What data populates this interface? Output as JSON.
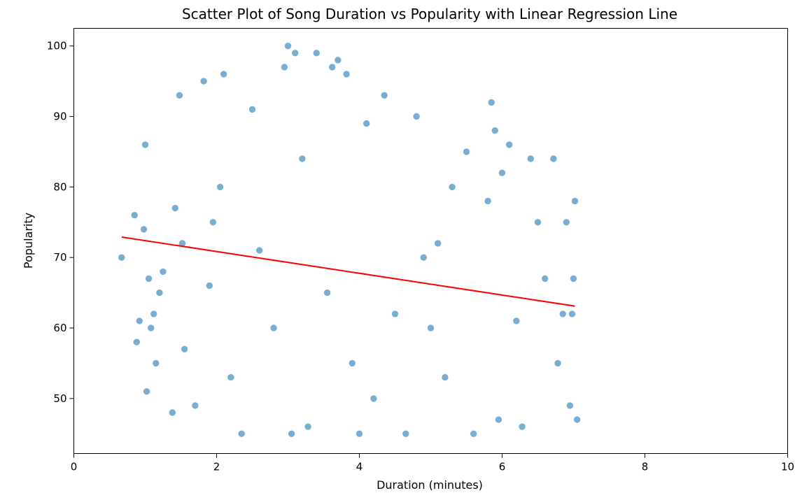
{
  "chart_data": {
    "type": "scatter",
    "title": "Scatter Plot of Song Duration vs Popularity with Linear Regression Line",
    "xlabel": "Duration (minutes)",
    "ylabel": "Popularity",
    "xlim": [
      0,
      10
    ],
    "ylim": [
      42.2,
      102.5
    ],
    "xticks": [
      0,
      2,
      4,
      6,
      8,
      10
    ],
    "yticks": [
      50,
      60,
      70,
      80,
      90,
      100
    ],
    "grid": false,
    "legend": "none",
    "colors": {
      "points": "#1f77b4",
      "regression": "#ff0000"
    },
    "regression_line": {
      "x": [
        0.67,
        7.02
      ],
      "y": [
        72.9,
        63.1
      ]
    },
    "series": [
      {
        "x": [
          0.67,
          0.85,
          0.88,
          0.92,
          0.98,
          1.0,
          1.02,
          1.05,
          1.08,
          1.12,
          1.15,
          1.2,
          1.25,
          1.38,
          1.42,
          1.48,
          1.52,
          1.55,
          1.7,
          1.82,
          1.9,
          1.95,
          2.05,
          2.1,
          2.2,
          2.35,
          2.5,
          2.6,
          2.8,
          2.95,
          3.0,
          3.05,
          3.1,
          3.2,
          3.28,
          3.4,
          3.55,
          3.62,
          3.7,
          3.82,
          3.9,
          4.0,
          4.1,
          4.2,
          4.35,
          4.5,
          4.65,
          4.8,
          4.9,
          5.0,
          5.1,
          5.2,
          5.3,
          5.5,
          5.6,
          5.8,
          5.85,
          5.9,
          5.95,
          6.0,
          6.1,
          6.2,
          6.28,
          6.4,
          6.5,
          6.6,
          6.72,
          6.78,
          6.85,
          6.9,
          6.95,
          6.98,
          7.0,
          7.02,
          7.05
        ],
        "y": [
          70.0,
          76.0,
          58.0,
          61.0,
          74.0,
          86.0,
          51.0,
          67.0,
          60.0,
          62.0,
          55.0,
          65.0,
          68.0,
          48.0,
          77.0,
          93.0,
          72.0,
          57.0,
          49.0,
          95.0,
          66.0,
          75.0,
          80.0,
          96.0,
          53.0,
          45.0,
          91.0,
          71.0,
          60.0,
          97.0,
          100.0,
          45.0,
          99.0,
          84.0,
          46.0,
          99.0,
          65.0,
          97.0,
          98.0,
          96.0,
          55.0,
          45.0,
          89.0,
          50.0,
          93.0,
          62.0,
          45.0,
          90.0,
          70.0,
          60.0,
          72.0,
          53.0,
          80.0,
          85.0,
          45.0,
          78.0,
          92.0,
          88.0,
          47.0,
          82.0,
          86.0,
          61.0,
          46.0,
          84.0,
          75.0,
          67.0,
          84.0,
          55.0,
          62.0,
          75.0,
          49.0,
          62.0,
          67.0,
          78.0,
          47.0
        ]
      }
    ]
  }
}
